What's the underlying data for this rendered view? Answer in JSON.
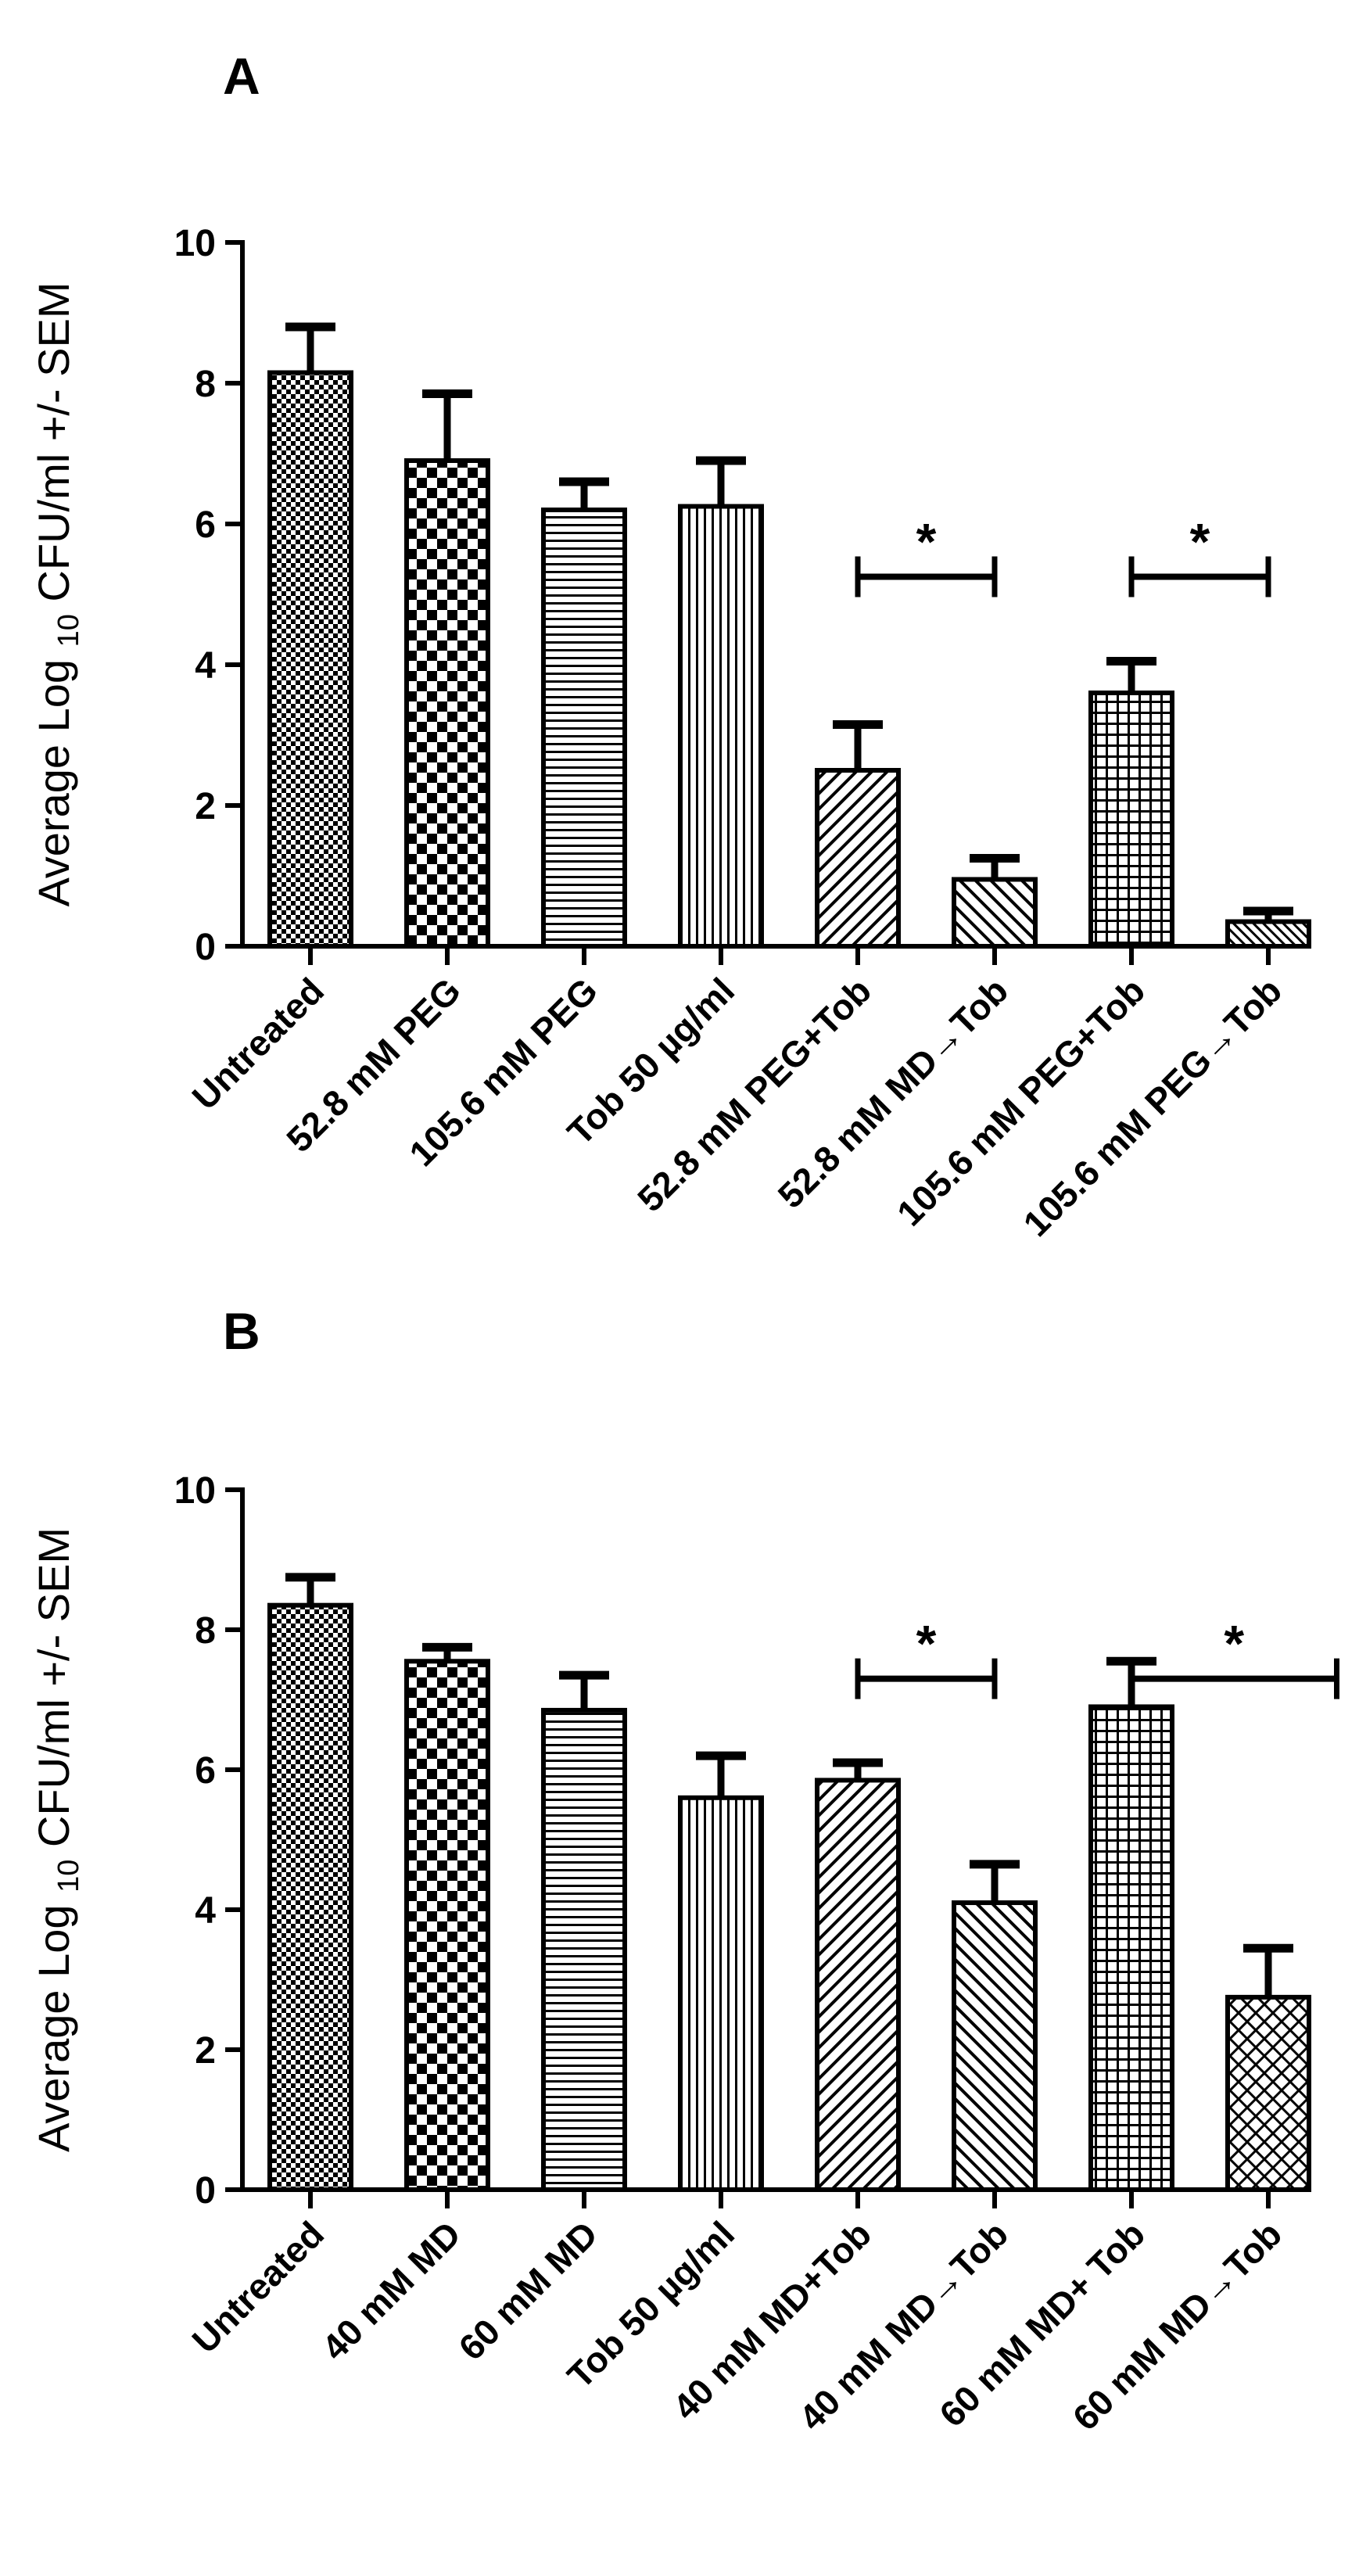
{
  "chart_data": [
    {
      "panel": "A",
      "type": "bar",
      "ylabel": "Average Log",
      "ylabel_sub": "10",
      "ylabel_rest": "CFU/ml  +/- SEM",
      "ylim": [
        0,
        10
      ],
      "yticks": [
        "0",
        "2",
        "4",
        "6",
        "8",
        "10"
      ],
      "categories": [
        "Untreated",
        "52.8 mM PEG",
        "105.6 mM PEG",
        "Tob 50 µg/ml",
        "52.8 mM PEG+Tob",
        "52.8 mM MD→Tob",
        "105.6 mM PEG+Tob",
        "105.6 mM PEG→Tob"
      ],
      "values": [
        8.15,
        6.9,
        6.2,
        6.25,
        2.5,
        0.95,
        3.6,
        0.35
      ],
      "errors": [
        0.65,
        0.95,
        0.4,
        0.65,
        0.65,
        0.3,
        0.45,
        0.15
      ],
      "patterns": [
        "checker-fine",
        "checker-coarse",
        "hlines",
        "vlines",
        "diag-fwd",
        "diag-back",
        "grid",
        "diag-back-fine"
      ],
      "significance": [
        {
          "from": 4,
          "to": 5,
          "level": 5.25,
          "label": "*"
        },
        {
          "from": 6,
          "to": 7,
          "level": 5.25,
          "label": "*"
        }
      ]
    },
    {
      "panel": "B",
      "type": "bar",
      "ylabel": "Average Log",
      "ylabel_sub": "10",
      "ylabel_rest": "CFU/ml  +/- SEM",
      "ylim": [
        0,
        10
      ],
      "yticks": [
        "0",
        "2",
        "4",
        "6",
        "8",
        "10"
      ],
      "categories": [
        "Untreated",
        "40 mM MD",
        "60 mM MD",
        "Tob 50 µg/ml",
        "40 mM MD+Tob",
        "40 mM MD→Tob",
        "60 mM MD+ Tob",
        "60 mM MD→Tob"
      ],
      "values": [
        8.35,
        7.55,
        6.85,
        5.6,
        5.85,
        4.1,
        6.9,
        2.75
      ],
      "errors": [
        0.4,
        0.2,
        0.5,
        0.6,
        0.25,
        0.55,
        0.65,
        0.7
      ],
      "patterns": [
        "checker-fine",
        "checker-coarse",
        "hlines",
        "vlines",
        "diag-fwd",
        "diag-back",
        "grid",
        "crosshatch"
      ],
      "significance": [
        {
          "from": 4,
          "to": 5,
          "level": 7.3,
          "label": "*"
        },
        {
          "from": 6,
          "to": 7.5,
          "level": 7.3,
          "label": "*"
        }
      ]
    }
  ]
}
